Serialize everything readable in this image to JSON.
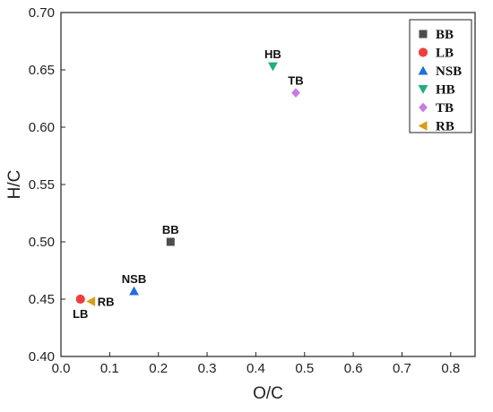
{
  "chart_data": {
    "type": "scatter",
    "xlabel": "O/C",
    "ylabel": "H/C",
    "xlim": [
      0.0,
      0.85
    ],
    "ylim": [
      0.4,
      0.7
    ],
    "xticks": [
      "0.0",
      "0.1",
      "0.2",
      "0.3",
      "0.4",
      "0.5",
      "0.6",
      "0.7",
      "0.8"
    ],
    "yticks": [
      "0.40",
      "0.45",
      "0.50",
      "0.55",
      "0.60",
      "0.65",
      "0.70"
    ],
    "legend_position": "top-right",
    "grid": false,
    "series": [
      {
        "name": "BB",
        "marker": "square",
        "color": "#4d4d4d",
        "x": 0.225,
        "y": 0.5,
        "point_label": "BB",
        "label_side": "above"
      },
      {
        "name": "LB",
        "marker": "circle",
        "color": "#ee3f3f",
        "x": 0.04,
        "y": 0.45,
        "point_label": "LB",
        "label_side": "below"
      },
      {
        "name": "NSB",
        "marker": "triangle-up",
        "color": "#1f6fe0",
        "x": 0.15,
        "y": 0.457,
        "point_label": "NSB",
        "label_side": "above"
      },
      {
        "name": "HB",
        "marker": "triangle-down",
        "color": "#1fb07a",
        "x": 0.435,
        "y": 0.653,
        "point_label": "HB",
        "label_side": "above"
      },
      {
        "name": "TB",
        "marker": "diamond",
        "color": "#c97be6",
        "x": 0.482,
        "y": 0.63,
        "point_label": "TB",
        "label_side": "above"
      },
      {
        "name": "RB",
        "marker": "triangle-left",
        "color": "#d4a017",
        "x": 0.062,
        "y": 0.448,
        "point_label": "RB",
        "label_side": "right"
      }
    ]
  }
}
